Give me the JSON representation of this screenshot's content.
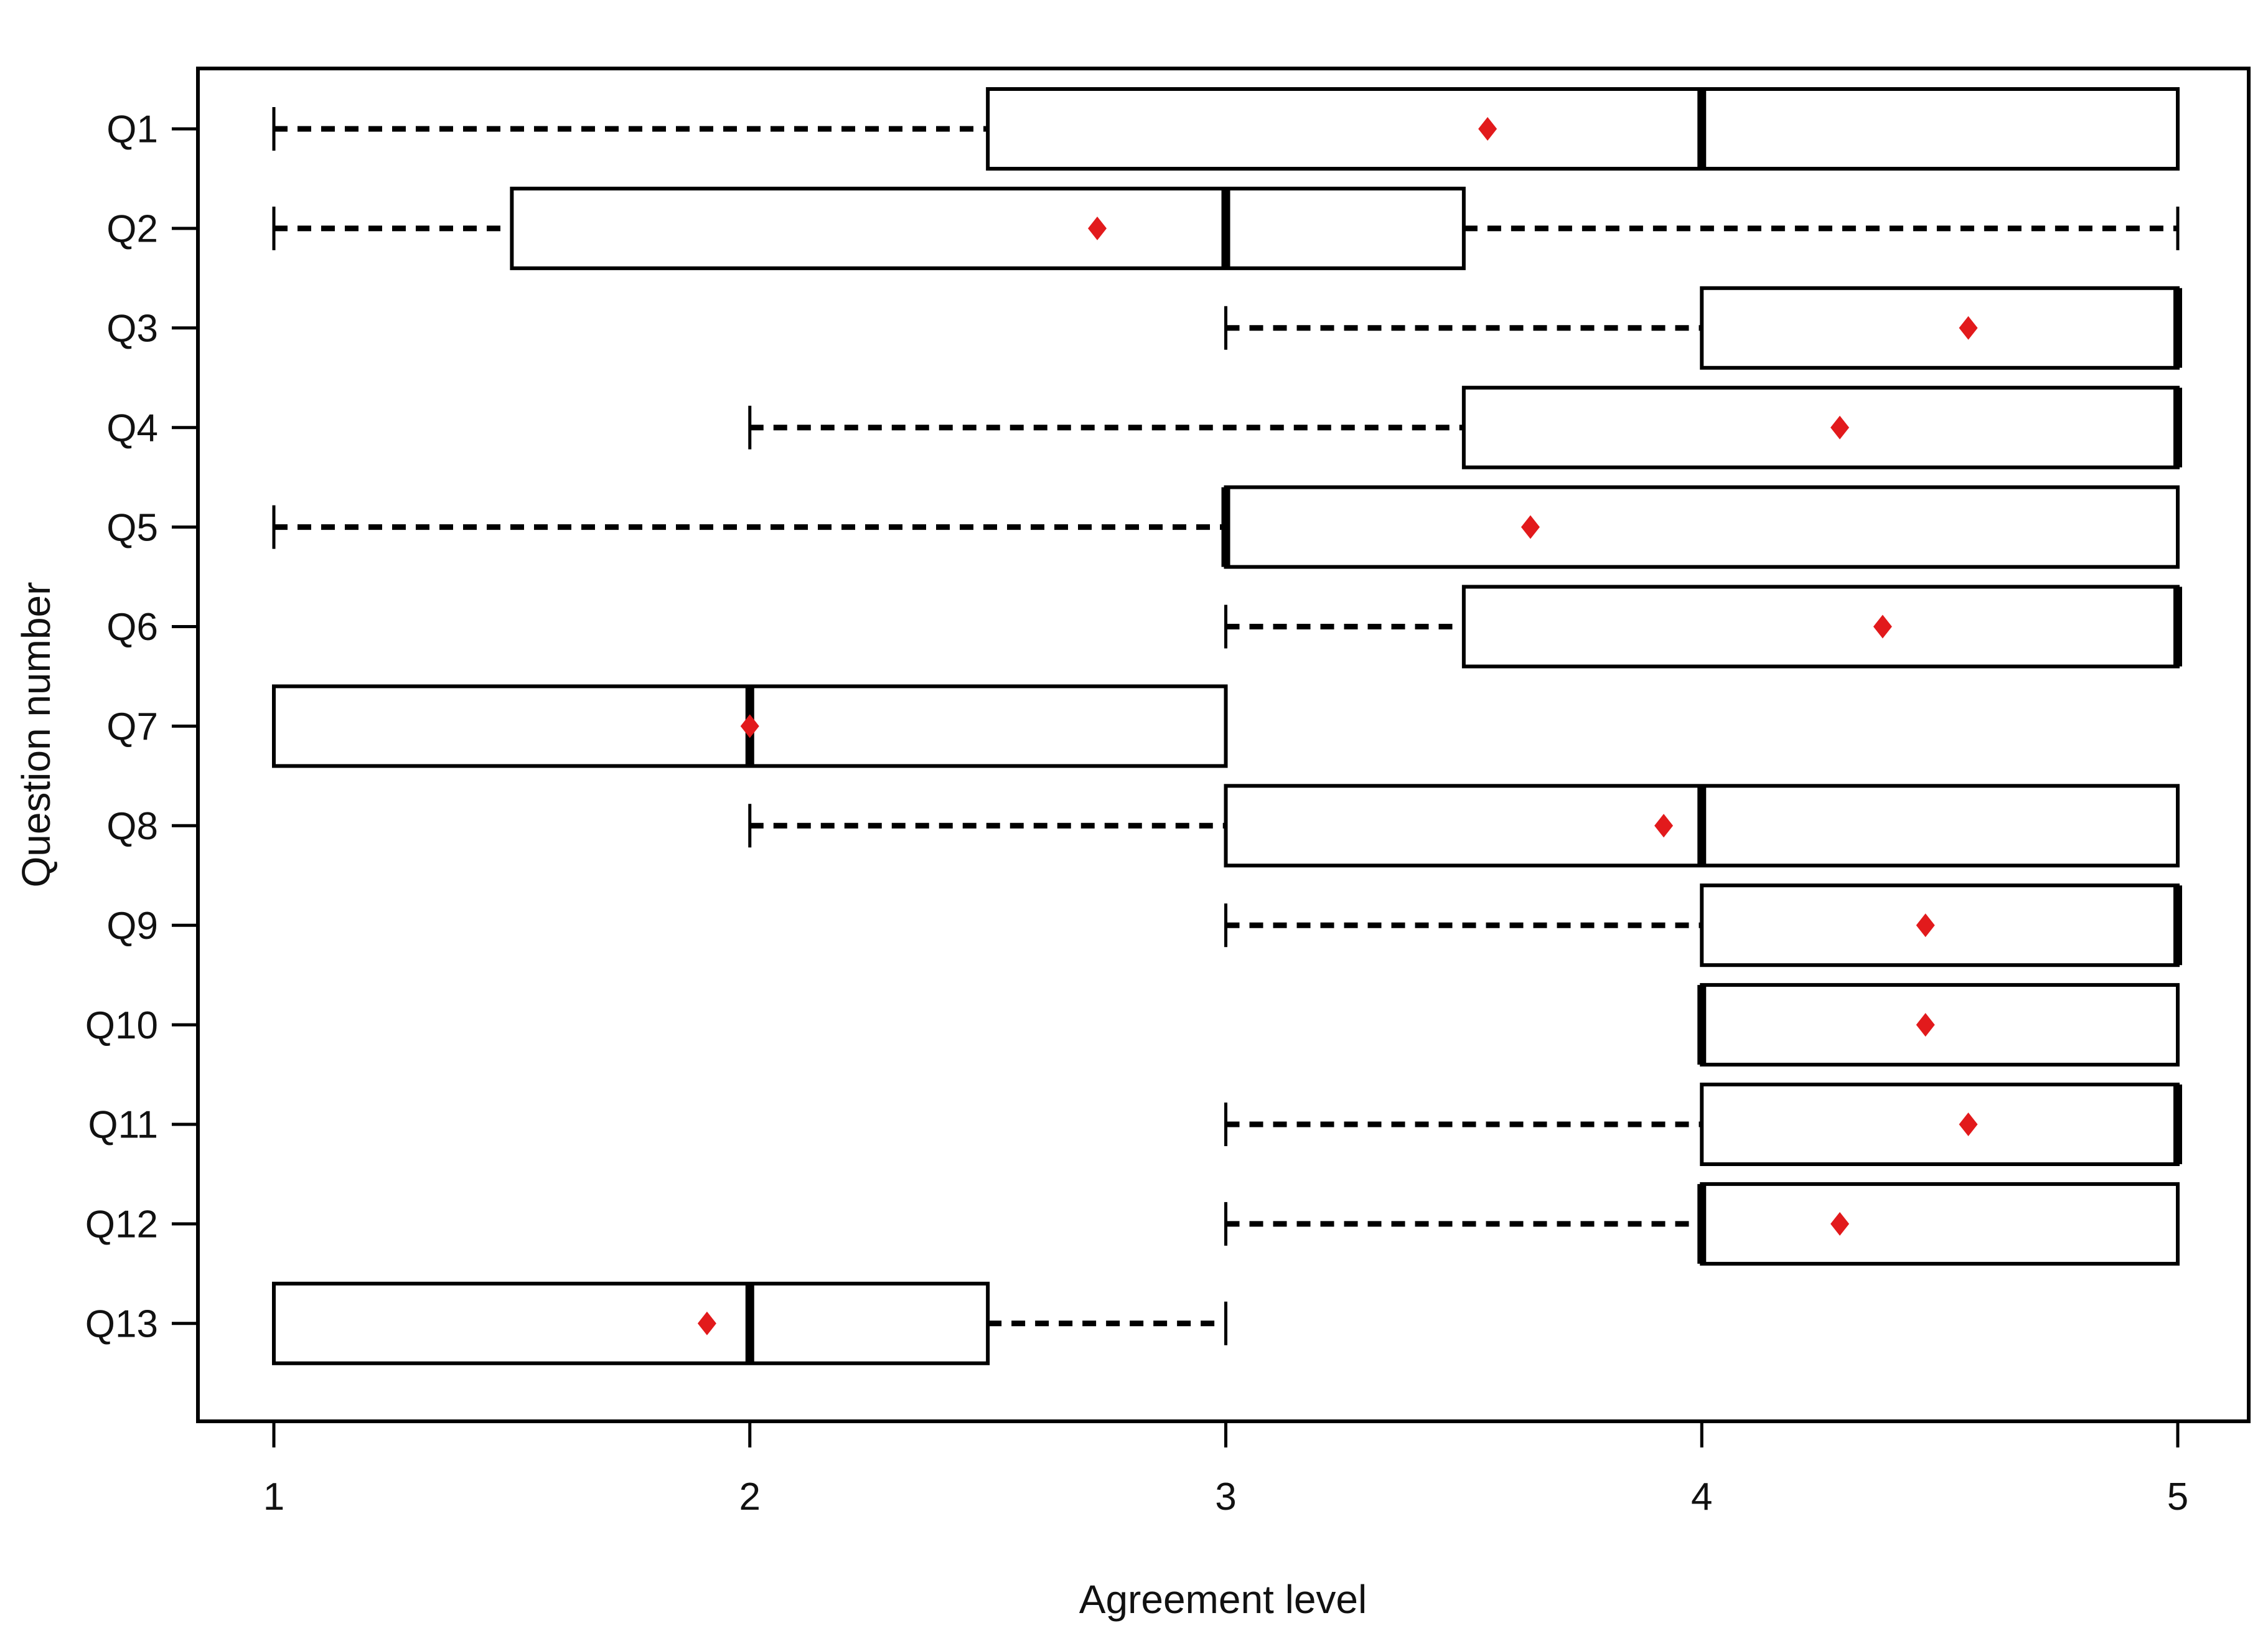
{
  "page": {
    "background": "#ffffff"
  },
  "figure": {
    "xlabel": "Agreement level",
    "ylabel": "Question number"
  },
  "chart_data": {
    "type": "boxplot",
    "orientation": "horizontal",
    "title": "",
    "xlabel": "Agreement level",
    "ylabel": "Question number",
    "xlim": [
      1,
      5
    ],
    "xticks": [
      "1",
      "2",
      "3",
      "4",
      "5"
    ],
    "x_tick_values": [
      1,
      2,
      3,
      4,
      5
    ],
    "categories": [
      "Q1",
      "Q2",
      "Q3",
      "Q4",
      "Q5",
      "Q6",
      "Q7",
      "Q8",
      "Q9",
      "Q10",
      "Q11",
      "Q12",
      "Q13"
    ],
    "grid": false,
    "legend": null,
    "whisker_style": "dashed",
    "mean_marker_shape": "diamond",
    "colors": {
      "line": "#000000",
      "box_fill": "#ffffff",
      "mean_marker": "#e21a1c",
      "text": "#111111",
      "background": "#ffffff"
    },
    "series": [
      {
        "name": "Q1",
        "whisker_low": 1.0,
        "q1": 2.5,
        "median": 4.0,
        "q3": 5.0,
        "whisker_high": 5.0,
        "mean": 3.55
      },
      {
        "name": "Q2",
        "whisker_low": 1.0,
        "q1": 1.5,
        "median": 3.0,
        "q3": 3.5,
        "whisker_high": 5.0,
        "mean": 2.73
      },
      {
        "name": "Q3",
        "whisker_low": 3.0,
        "q1": 4.0,
        "median": 5.0,
        "q3": 5.0,
        "whisker_high": 5.0,
        "mean": 4.56
      },
      {
        "name": "Q4",
        "whisker_low": 2.0,
        "q1": 3.5,
        "median": 5.0,
        "q3": 5.0,
        "whisker_high": 5.0,
        "mean": 4.29
      },
      {
        "name": "Q5",
        "whisker_low": 1.0,
        "q1": 3.0,
        "median": 3.0,
        "q3": 5.0,
        "whisker_high": 5.0,
        "mean": 3.64
      },
      {
        "name": "Q6",
        "whisker_low": 3.0,
        "q1": 3.5,
        "median": 5.0,
        "q3": 5.0,
        "whisker_high": 5.0,
        "mean": 4.38
      },
      {
        "name": "Q7",
        "whisker_low": 1.0,
        "q1": 1.0,
        "median": 2.0,
        "q3": 3.0,
        "whisker_high": 3.0,
        "mean": 2.0
      },
      {
        "name": "Q8",
        "whisker_low": 2.0,
        "q1": 3.0,
        "median": 4.0,
        "q3": 5.0,
        "whisker_high": 5.0,
        "mean": 3.92
      },
      {
        "name": "Q9",
        "whisker_low": 3.0,
        "q1": 4.0,
        "median": 5.0,
        "q3": 5.0,
        "whisker_high": 5.0,
        "mean": 4.47
      },
      {
        "name": "Q10",
        "whisker_low": 4.0,
        "q1": 4.0,
        "median": 4.0,
        "q3": 5.0,
        "whisker_high": 5.0,
        "mean": 4.47
      },
      {
        "name": "Q11",
        "whisker_low": 3.0,
        "q1": 4.0,
        "median": 5.0,
        "q3": 5.0,
        "whisker_high": 5.0,
        "mean": 4.56
      },
      {
        "name": "Q12",
        "whisker_low": 3.0,
        "q1": 4.0,
        "median": 4.0,
        "q3": 5.0,
        "whisker_high": 5.0,
        "mean": 4.29
      },
      {
        "name": "Q13",
        "whisker_low": 1.0,
        "q1": 1.0,
        "median": 2.0,
        "q3": 2.5,
        "whisker_high": 3.0,
        "mean": 1.91
      }
    ]
  }
}
